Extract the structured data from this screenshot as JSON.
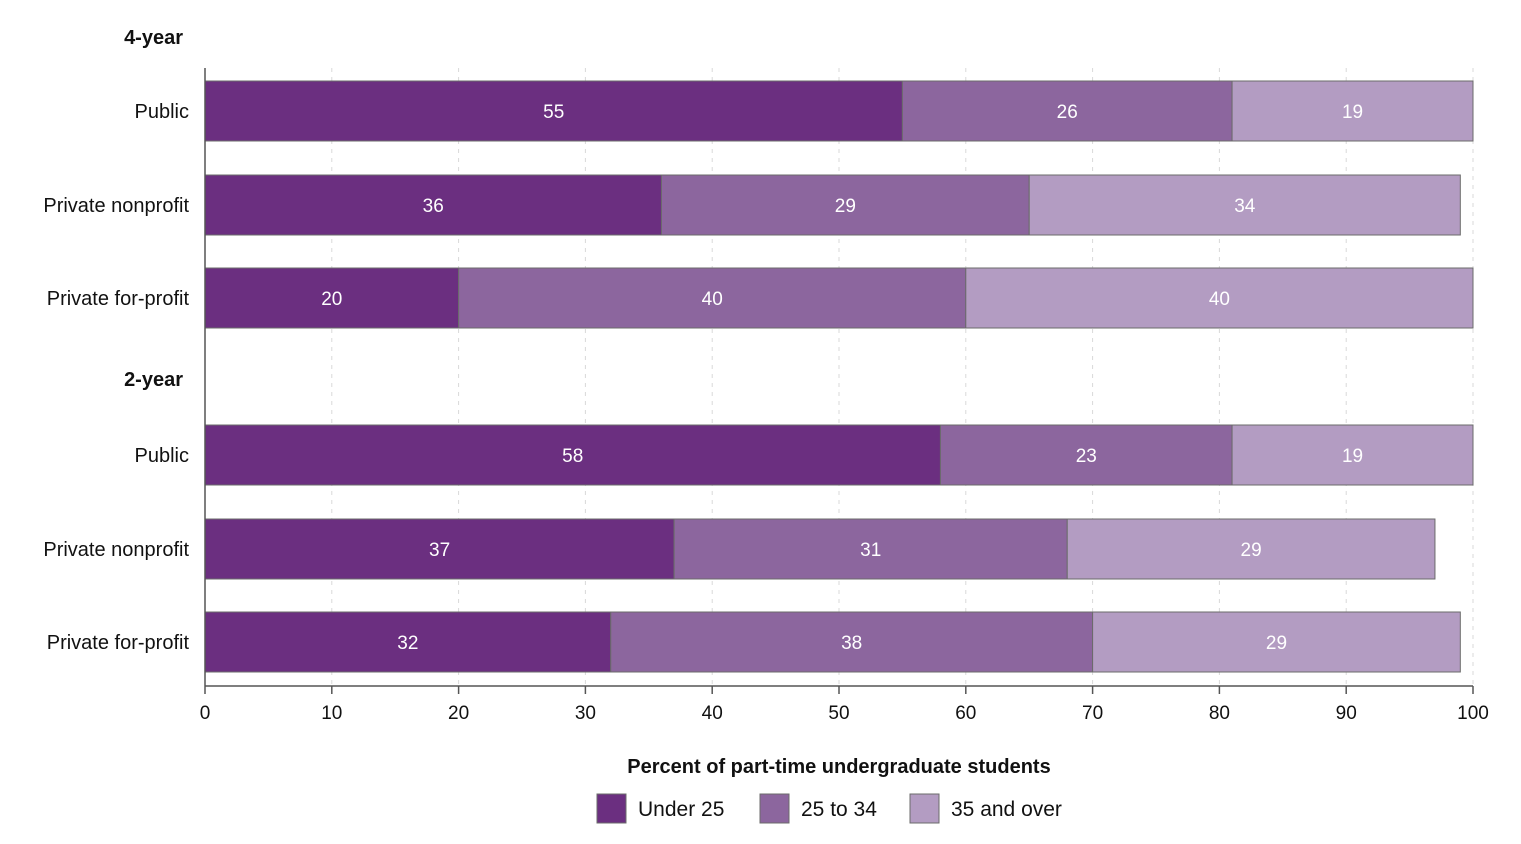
{
  "chart_data": {
    "type": "bar",
    "orientation": "horizontal",
    "stacked": true,
    "xlabel": "Percent of part-time undergraduate students",
    "xlim": [
      0,
      100
    ],
    "xticks": [
      "0",
      "10",
      "20",
      "30",
      "40",
      "50",
      "60",
      "70",
      "80",
      "90",
      "100"
    ],
    "grid": true,
    "legend_placement": "bottom-center",
    "series": [
      {
        "name": "Under 25",
        "color": "#6b2f80"
      },
      {
        "name": "25 to 34",
        "color": "#8c669e"
      },
      {
        "name": "35 and over",
        "color": "#b39cc2"
      }
    ],
    "groups": [
      {
        "label": "4-year",
        "categories": [
          {
            "label": "Public",
            "values": [
              55,
              26,
              19
            ]
          },
          {
            "label": "Private nonprofit",
            "values": [
              36,
              29,
              34
            ]
          },
          {
            "label": "Private for-profit",
            "values": [
              20,
              40,
              40
            ]
          }
        ]
      },
      {
        "label": "2-year",
        "categories": [
          {
            "label": "Public",
            "values": [
              58,
              23,
              19
            ]
          },
          {
            "label": "Private nonprofit",
            "values": [
              37,
              31,
              29
            ]
          },
          {
            "label": "Private for-profit",
            "values": [
              32,
              38,
              29
            ]
          }
        ]
      }
    ]
  }
}
